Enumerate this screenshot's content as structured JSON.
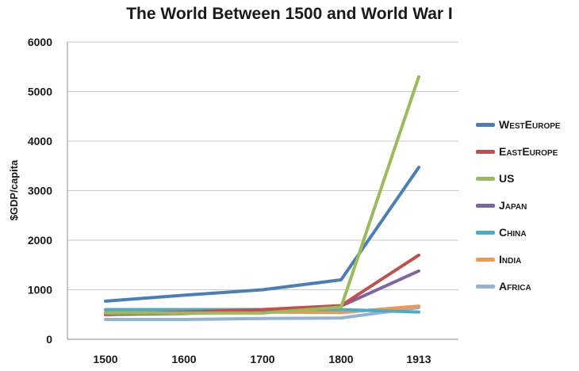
{
  "chart_data": {
    "type": "line",
    "title": "The World Between 1500 and World War I",
    "xlabel": "",
    "ylabel": "$GDP/capita",
    "categories": [
      "1500",
      "1600",
      "1700",
      "1800",
      "1913"
    ],
    "ylim": [
      0,
      6000
    ],
    "yticks": [
      "0",
      "1000",
      "2000",
      "3000",
      "4000",
      "5000",
      "6000"
    ],
    "grid": true,
    "legend_position": "right",
    "series": [
      {
        "name": "WestEurope",
        "color": "#4a7eb5",
        "values": [
          770,
          890,
          1000,
          1200,
          3470
        ]
      },
      {
        "name": "EastEurope",
        "color": "#c0504d",
        "values": [
          500,
          550,
          600,
          680,
          1700
        ]
      },
      {
        "name": "US",
        "color": "#9bbb59",
        "values": [
          530,
          530,
          530,
          650,
          5300
        ]
      },
      {
        "name": "Japan",
        "color": "#8064a2",
        "values": [
          500,
          520,
          570,
          670,
          1380
        ]
      },
      {
        "name": "China",
        "color": "#4bacc6",
        "values": [
          600,
          600,
          600,
          600,
          550
        ]
      },
      {
        "name": "India",
        "color": "#f79646",
        "values": [
          550,
          550,
          550,
          540,
          670
        ]
      },
      {
        "name": "Africa",
        "color": "#92b2d6",
        "values": [
          400,
          400,
          420,
          430,
          640
        ]
      }
    ]
  }
}
